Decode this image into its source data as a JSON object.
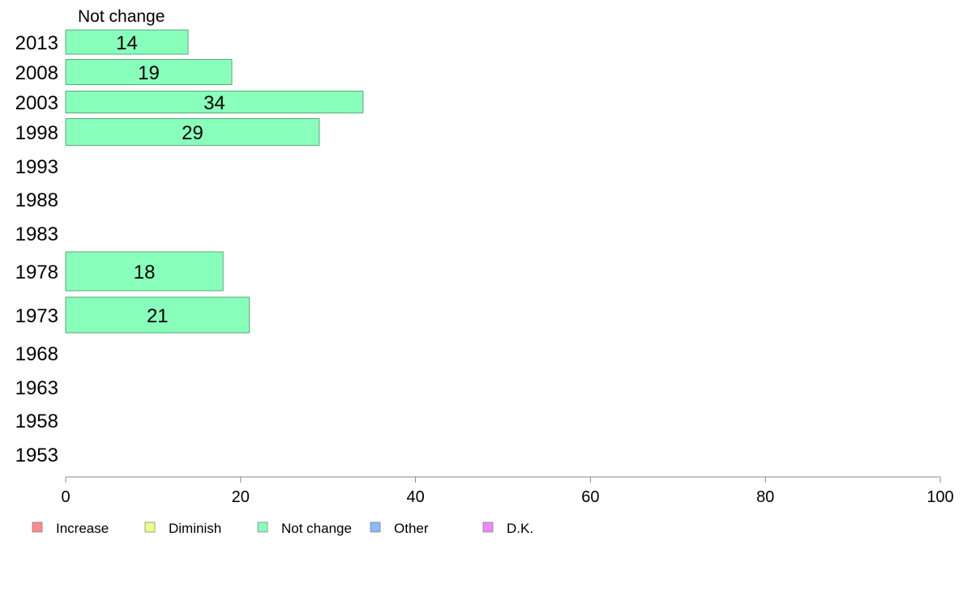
{
  "chart_data": {
    "type": "bar",
    "orientation": "horizontal",
    "series_title": "Not change",
    "categories": [
      "2013",
      "2008",
      "2003",
      "1998",
      "1993",
      "1988",
      "1983",
      "1978",
      "1973",
      "1968",
      "1963",
      "1958",
      "1953"
    ],
    "series": [
      {
        "name": "Not change",
        "values": [
          14,
          19,
          34,
          29,
          null,
          null,
          null,
          18,
          21,
          null,
          null,
          null,
          null
        ]
      }
    ],
    "xlim": [
      0,
      100
    ],
    "xticks": [
      0,
      20,
      40,
      60,
      80,
      100
    ],
    "grid": false,
    "legend_position": "bottom",
    "legend": [
      "Increase",
      "Diminish",
      "Not change",
      "Other",
      "D.K."
    ]
  },
  "colors": {
    "Increase": "#ff8c8c",
    "Diminish": "#eeff88",
    "Not change": "#88ffbb",
    "Other": "#88bbff",
    "D.K.": "#ee88ff",
    "bar_stroke": "#5aaa7a",
    "axis": "#888888"
  }
}
